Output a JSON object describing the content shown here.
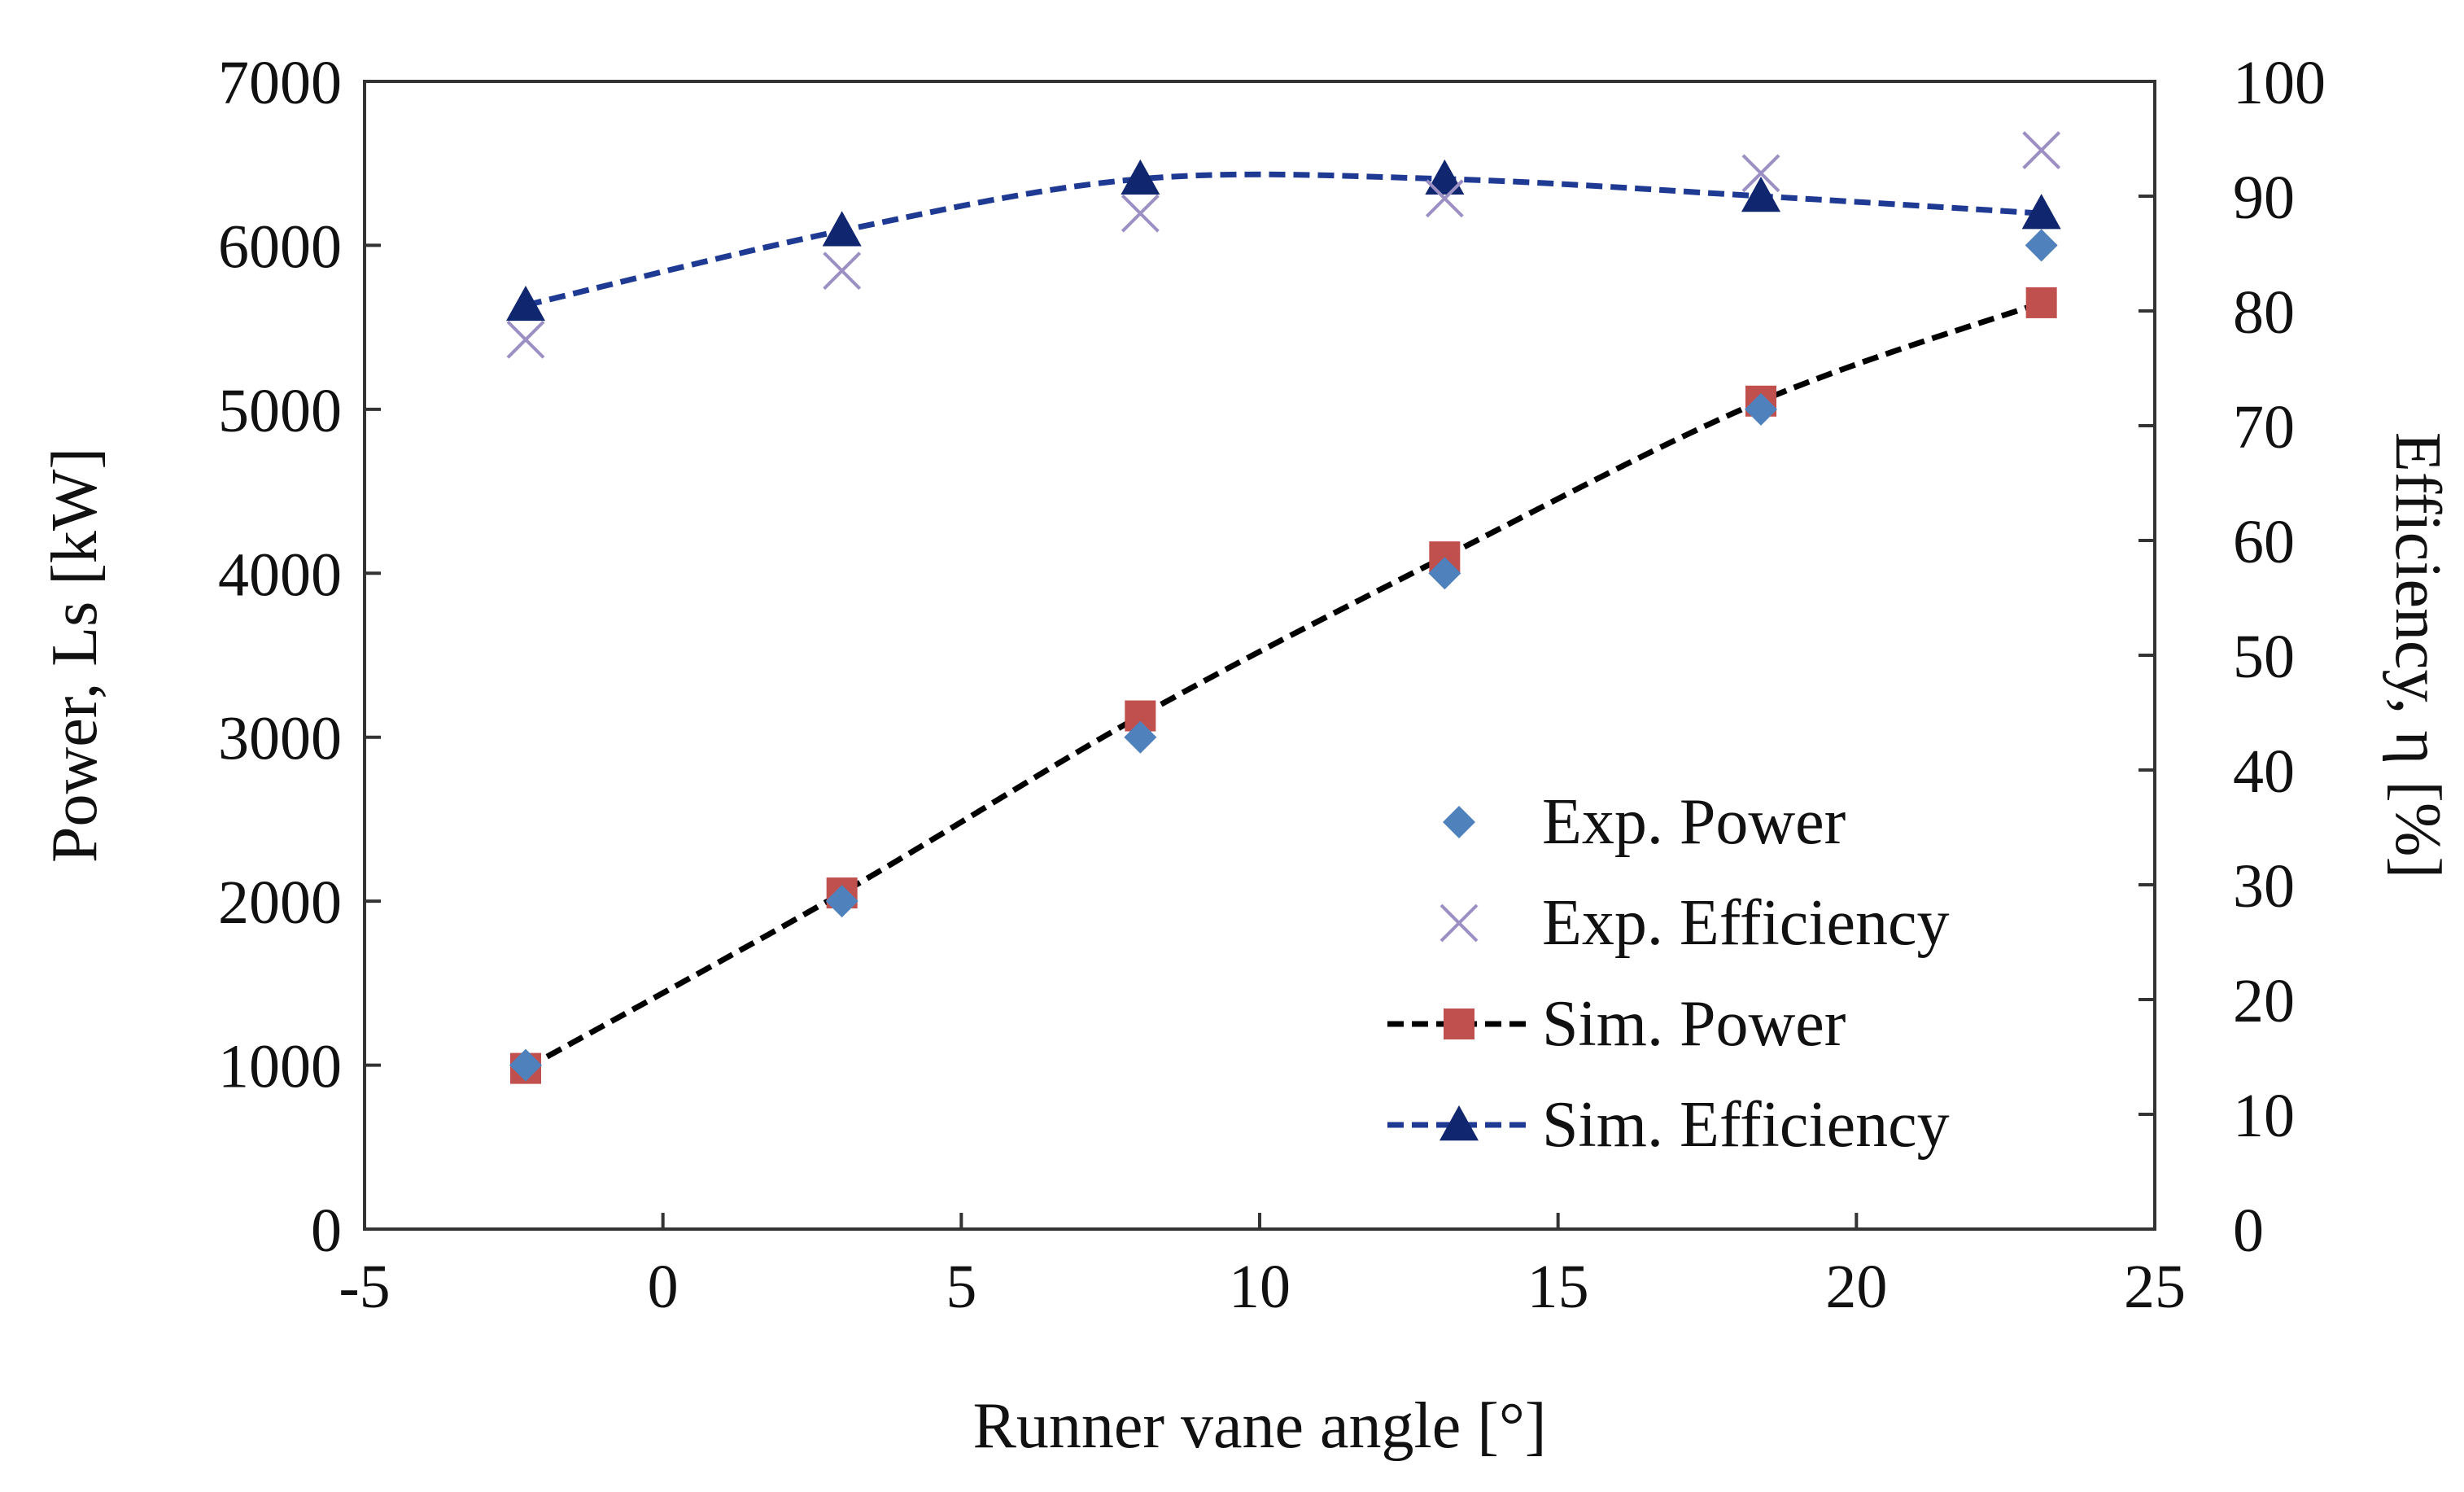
{
  "chart_data": {
    "type": "scatter",
    "title": "",
    "xlabel": "Runner vane angle [°]",
    "ylabel": "Power, Ls [kW]",
    "y2label": "Efficiency, η [%]",
    "xlim": [
      -5,
      25
    ],
    "ylim": [
      0,
      7000
    ],
    "y2lim": [
      0,
      100
    ],
    "x_ticks": [
      -5,
      0,
      5,
      10,
      15,
      20,
      25
    ],
    "y_ticks": [
      0,
      1000,
      2000,
      3000,
      4000,
      5000,
      6000,
      7000
    ],
    "y2_ticks": [
      0,
      10,
      20,
      30,
      40,
      50,
      60,
      70,
      80,
      90,
      100
    ],
    "grid": false,
    "legend_position": "lower-right",
    "series": [
      {
        "name": "Exp. Power",
        "axis": "left",
        "marker": "diamond",
        "line": "none",
        "color": "#4F81BD",
        "x": [
          -2.3,
          3,
          8,
          13.1,
          18.4,
          23.1
        ],
        "values": [
          1000,
          2000,
          3000,
          4000,
          5000,
          6000
        ]
      },
      {
        "name": "Exp. Efficiency",
        "axis": "right",
        "marker": "x",
        "line": "none",
        "color": "#9B8FC4",
        "x": [
          -2.3,
          3,
          8,
          13.1,
          18.4,
          23.1
        ],
        "values": [
          77.5,
          83.5,
          88.5,
          89.8,
          92,
          94
        ]
      },
      {
        "name": "Sim. Power",
        "axis": "left",
        "marker": "square",
        "line": "dashed",
        "line_color": "#000000",
        "color": "#C0504D",
        "x": [
          -2.3,
          3,
          8,
          13.1,
          18.4,
          23.1
        ],
        "values": [
          980,
          2050,
          3130,
          4100,
          5050,
          5650
        ]
      },
      {
        "name": "Sim. Efficiency",
        "axis": "right",
        "marker": "triangle",
        "line": "dashed",
        "line_color": "#1F3A93",
        "color": "#10266E",
        "x": [
          -2.3,
          3,
          8,
          13.1,
          18.4,
          23.1
        ],
        "values": [
          80.5,
          87,
          91.5,
          91.5,
          90,
          88.5
        ]
      }
    ]
  }
}
